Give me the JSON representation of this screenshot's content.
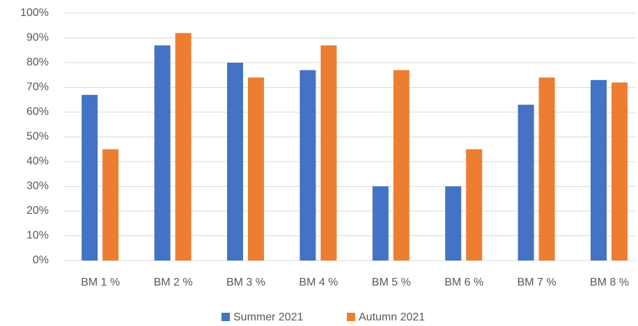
{
  "chart_data": {
    "type": "bar",
    "categories": [
      "BM 1 %",
      "BM 2 %",
      "BM 3 %",
      "BM 4 %",
      "BM 5 %",
      "BM 6 %",
      "BM 7 %",
      "BM 8 %"
    ],
    "series": [
      {
        "name": "Summer 2021",
        "color": "#4472c4",
        "values": [
          67,
          87,
          80,
          77,
          30,
          30,
          63,
          73
        ]
      },
      {
        "name": "Autumn 2021",
        "color": "#ed7d31",
        "values": [
          45,
          92,
          74,
          87,
          77,
          45,
          74,
          72
        ]
      }
    ],
    "ylim": [
      0,
      100
    ],
    "yticks": [
      {
        "value": 0,
        "label": "0%"
      },
      {
        "value": 10,
        "label": "10%"
      },
      {
        "value": 20,
        "label": "20%"
      },
      {
        "value": 30,
        "label": "30%"
      },
      {
        "value": 40,
        "label": "40%"
      },
      {
        "value": 50,
        "label": "50%"
      },
      {
        "value": 60,
        "label": "60%"
      },
      {
        "value": 70,
        "label": "70%"
      },
      {
        "value": 80,
        "label": "80%"
      },
      {
        "value": 90,
        "label": "90%"
      },
      {
        "value": 100,
        "label": "100%"
      }
    ],
    "grid": true,
    "legend": "bottom"
  }
}
